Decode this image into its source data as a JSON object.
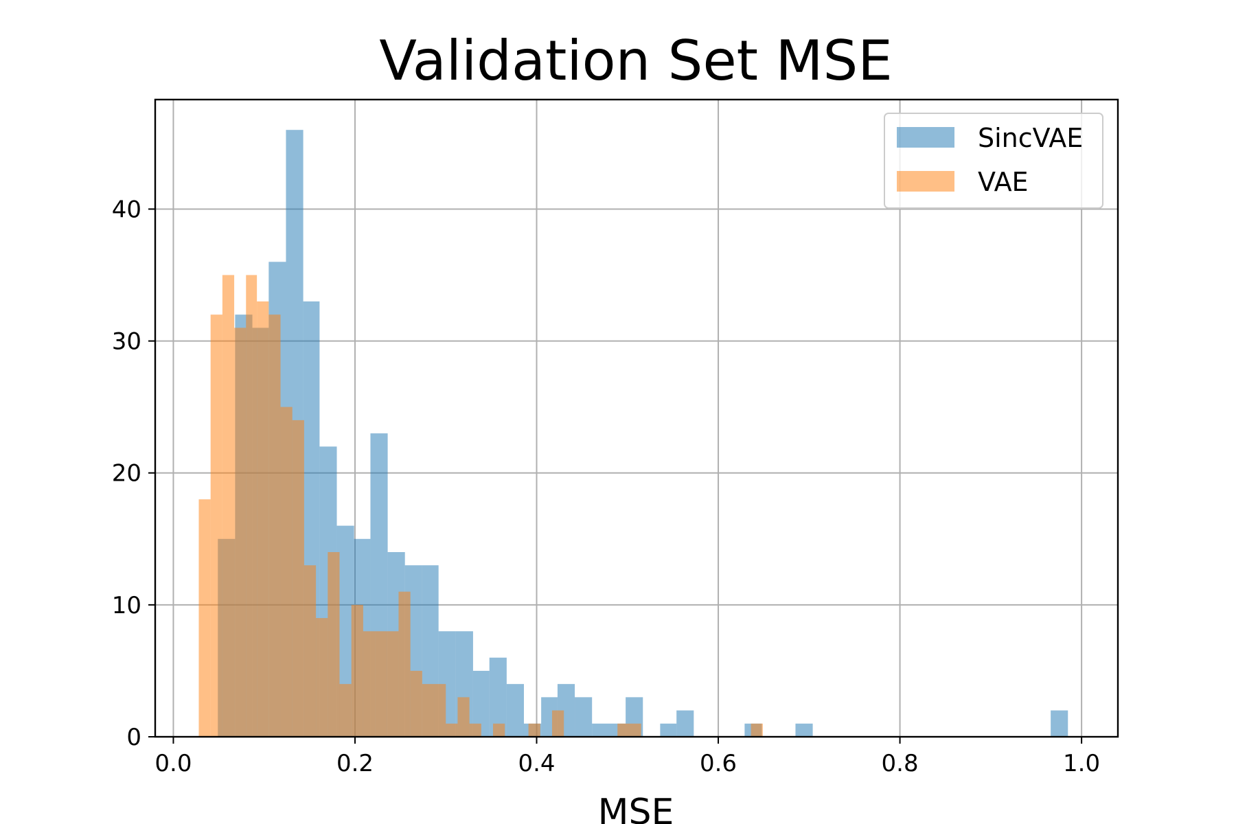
{
  "chart_data": {
    "type": "bar",
    "subtype": "histogram",
    "title": "Validation Set MSE",
    "xlabel": "MSE",
    "ylabel": "",
    "xlim": [
      -0.02,
      1.04
    ],
    "ylim": [
      0,
      48.3
    ],
    "grid": true,
    "legend_position": "top-right",
    "xticks": [
      {
        "value": 0.0,
        "label": "0.0"
      },
      {
        "value": 0.2,
        "label": "0.2"
      },
      {
        "value": 0.4,
        "label": "0.4"
      },
      {
        "value": 0.6,
        "label": "0.6"
      },
      {
        "value": 0.8,
        "label": "0.8"
      },
      {
        "value": 1.0,
        "label": "1.0"
      }
    ],
    "yticks": [
      {
        "value": 0,
        "label": "0"
      },
      {
        "value": 10,
        "label": "10"
      },
      {
        "value": 20,
        "label": "20"
      },
      {
        "value": 30,
        "label": "30"
      },
      {
        "value": 40,
        "label": "40"
      }
    ],
    "series": [
      {
        "name": "SincVAE",
        "color": "#1f77b4",
        "opacity": 0.5,
        "bins": [
          {
            "x0": 0.049,
            "x1": 0.068,
            "count": 15
          },
          {
            "x0": 0.068,
            "x1": 0.087,
            "count": 32
          },
          {
            "x0": 0.087,
            "x1": 0.105,
            "count": 31
          },
          {
            "x0": 0.105,
            "x1": 0.124,
            "count": 36
          },
          {
            "x0": 0.124,
            "x1": 0.143,
            "count": 46
          },
          {
            "x0": 0.143,
            "x1": 0.161,
            "count": 33
          },
          {
            "x0": 0.161,
            "x1": 0.18,
            "count": 22
          },
          {
            "x0": 0.18,
            "x1": 0.199,
            "count": 16
          },
          {
            "x0": 0.199,
            "x1": 0.217,
            "count": 15
          },
          {
            "x0": 0.217,
            "x1": 0.236,
            "count": 23
          },
          {
            "x0": 0.236,
            "x1": 0.255,
            "count": 14
          },
          {
            "x0": 0.255,
            "x1": 0.274,
            "count": 13
          },
          {
            "x0": 0.274,
            "x1": 0.292,
            "count": 13
          },
          {
            "x0": 0.292,
            "x1": 0.311,
            "count": 8
          },
          {
            "x0": 0.311,
            "x1": 0.33,
            "count": 8
          },
          {
            "x0": 0.33,
            "x1": 0.348,
            "count": 5
          },
          {
            "x0": 0.348,
            "x1": 0.367,
            "count": 6
          },
          {
            "x0": 0.367,
            "x1": 0.386,
            "count": 4
          },
          {
            "x0": 0.386,
            "x1": 0.405,
            "count": 1
          },
          {
            "x0": 0.405,
            "x1": 0.423,
            "count": 3
          },
          {
            "x0": 0.423,
            "x1": 0.442,
            "count": 4
          },
          {
            "x0": 0.442,
            "x1": 0.461,
            "count": 3
          },
          {
            "x0": 0.461,
            "x1": 0.479,
            "count": 1
          },
          {
            "x0": 0.479,
            "x1": 0.498,
            "count": 1
          },
          {
            "x0": 0.498,
            "x1": 0.517,
            "count": 3
          },
          {
            "x0": 0.536,
            "x1": 0.554,
            "count": 1
          },
          {
            "x0": 0.554,
            "x1": 0.573,
            "count": 2
          },
          {
            "x0": 0.629,
            "x1": 0.648,
            "count": 1
          },
          {
            "x0": 0.685,
            "x1": 0.704,
            "count": 1
          },
          {
            "x0": 0.966,
            "x1": 0.985,
            "count": 2
          }
        ]
      },
      {
        "name": "VAE",
        "color": "#ff7f0e",
        "opacity": 0.5,
        "bins": [
          {
            "x0": 0.028,
            "x1": 0.041,
            "count": 18
          },
          {
            "x0": 0.041,
            "x1": 0.054,
            "count": 32
          },
          {
            "x0": 0.054,
            "x1": 0.067,
            "count": 35
          },
          {
            "x0": 0.067,
            "x1": 0.08,
            "count": 31
          },
          {
            "x0": 0.08,
            "x1": 0.092,
            "count": 35
          },
          {
            "x0": 0.092,
            "x1": 0.105,
            "count": 33
          },
          {
            "x0": 0.105,
            "x1": 0.118,
            "count": 32
          },
          {
            "x0": 0.118,
            "x1": 0.131,
            "count": 25
          },
          {
            "x0": 0.131,
            "x1": 0.144,
            "count": 24
          },
          {
            "x0": 0.144,
            "x1": 0.157,
            "count": 13
          },
          {
            "x0": 0.157,
            "x1": 0.17,
            "count": 9
          },
          {
            "x0": 0.17,
            "x1": 0.183,
            "count": 14
          },
          {
            "x0": 0.183,
            "x1": 0.196,
            "count": 4
          },
          {
            "x0": 0.196,
            "x1": 0.209,
            "count": 10
          },
          {
            "x0": 0.209,
            "x1": 0.222,
            "count": 8
          },
          {
            "x0": 0.222,
            "x1": 0.235,
            "count": 8
          },
          {
            "x0": 0.235,
            "x1": 0.248,
            "count": 8
          },
          {
            "x0": 0.248,
            "x1": 0.261,
            "count": 11
          },
          {
            "x0": 0.261,
            "x1": 0.274,
            "count": 5
          },
          {
            "x0": 0.274,
            "x1": 0.287,
            "count": 4
          },
          {
            "x0": 0.287,
            "x1": 0.3,
            "count": 4
          },
          {
            "x0": 0.3,
            "x1": 0.313,
            "count": 1
          },
          {
            "x0": 0.313,
            "x1": 0.326,
            "count": 3
          },
          {
            "x0": 0.326,
            "x1": 0.339,
            "count": 1
          },
          {
            "x0": 0.352,
            "x1": 0.365,
            "count": 1
          },
          {
            "x0": 0.391,
            "x1": 0.404,
            "count": 1
          },
          {
            "x0": 0.417,
            "x1": 0.43,
            "count": 2
          },
          {
            "x0": 0.489,
            "x1": 0.515,
            "count": 1
          },
          {
            "x0": 0.636,
            "x1": 0.649,
            "count": 1
          }
        ]
      }
    ]
  }
}
